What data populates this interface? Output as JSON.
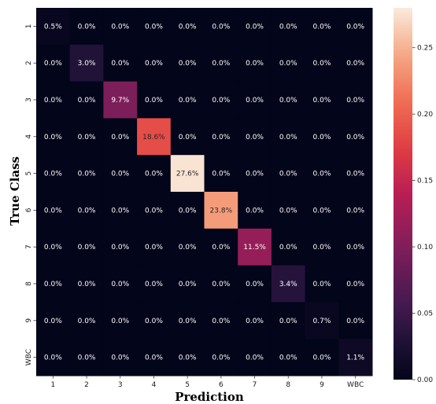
{
  "chart_data": {
    "type": "heatmap",
    "xlabel": "Prediction",
    "ylabel": "True Class",
    "x_categories": [
      "1",
      "2",
      "3",
      "4",
      "5",
      "6",
      "7",
      "8",
      "9",
      "WBC"
    ],
    "y_categories": [
      "1",
      "2",
      "3",
      "4",
      "5",
      "6",
      "7",
      "8",
      "9",
      "WBC"
    ],
    "values": [
      [
        0.005,
        0,
        0,
        0,
        0,
        0,
        0,
        0,
        0,
        0
      ],
      [
        0,
        0.03,
        0,
        0,
        0,
        0,
        0,
        0,
        0,
        0
      ],
      [
        0,
        0,
        0.097,
        0,
        0,
        0,
        0,
        0,
        0,
        0
      ],
      [
        0,
        0,
        0,
        0.186,
        0,
        0,
        0,
        0,
        0,
        0
      ],
      [
        0,
        0,
        0,
        0,
        0.276,
        0,
        0,
        0,
        0,
        0
      ],
      [
        0,
        0,
        0,
        0,
        0,
        0.238,
        0,
        0,
        0,
        0
      ],
      [
        0,
        0,
        0,
        0,
        0,
        0,
        0.115,
        0,
        0,
        0
      ],
      [
        0,
        0,
        0,
        0,
        0,
        0,
        0,
        0.034,
        0,
        0
      ],
      [
        0,
        0,
        0,
        0,
        0,
        0,
        0,
        0,
        0.007,
        0
      ],
      [
        0,
        0,
        0,
        0,
        0,
        0,
        0,
        0,
        0,
        0.011
      ]
    ],
    "cell_labels": [
      [
        "0.5%",
        "0.0%",
        "0.0%",
        "0.0%",
        "0.0%",
        "0.0%",
        "0.0%",
        "0.0%",
        "0.0%",
        "0.0%"
      ],
      [
        "0.0%",
        "3.0%",
        "0.0%",
        "0.0%",
        "0.0%",
        "0.0%",
        "0.0%",
        "0.0%",
        "0.0%",
        "0.0%"
      ],
      [
        "0.0%",
        "0.0%",
        "9.7%",
        "0.0%",
        "0.0%",
        "0.0%",
        "0.0%",
        "0.0%",
        "0.0%",
        "0.0%"
      ],
      [
        "0.0%",
        "0.0%",
        "0.0%",
        "18.6%",
        "0.0%",
        "0.0%",
        "0.0%",
        "0.0%",
        "0.0%",
        "0.0%"
      ],
      [
        "0.0%",
        "0.0%",
        "0.0%",
        "0.0%",
        "27.6%",
        "0.0%",
        "0.0%",
        "0.0%",
        "0.0%",
        "0.0%"
      ],
      [
        "0.0%",
        "0.0%",
        "0.0%",
        "0.0%",
        "0.0%",
        "23.8%",
        "0.0%",
        "0.0%",
        "0.0%",
        "0.0%"
      ],
      [
        "0.0%",
        "0.0%",
        "0.0%",
        "0.0%",
        "0.0%",
        "0.0%",
        "11.5%",
        "0.0%",
        "0.0%",
        "0.0%"
      ],
      [
        "0.0%",
        "0.0%",
        "0.0%",
        "0.0%",
        "0.0%",
        "0.0%",
        "0.0%",
        "3.4%",
        "0.0%",
        "0.0%"
      ],
      [
        "0.0%",
        "0.0%",
        "0.0%",
        "0.0%",
        "0.0%",
        "0.0%",
        "0.0%",
        "0.0%",
        "0.7%",
        "0.0%"
      ],
      [
        "0.0%",
        "0.0%",
        "0.0%",
        "0.0%",
        "0.0%",
        "0.0%",
        "0.0%",
        "0.0%",
        "0.0%",
        "1.1%"
      ]
    ],
    "colorbar": {
      "min": 0.0,
      "max": 0.28,
      "ticks": [
        0.0,
        0.05,
        0.1,
        0.15,
        0.2,
        0.25
      ],
      "tick_labels": [
        "0.00",
        "0.05",
        "0.10",
        "0.15",
        "0.20",
        "0.25"
      ],
      "colormap": "rocket"
    },
    "grid": false,
    "legend": "colorbar-right"
  }
}
